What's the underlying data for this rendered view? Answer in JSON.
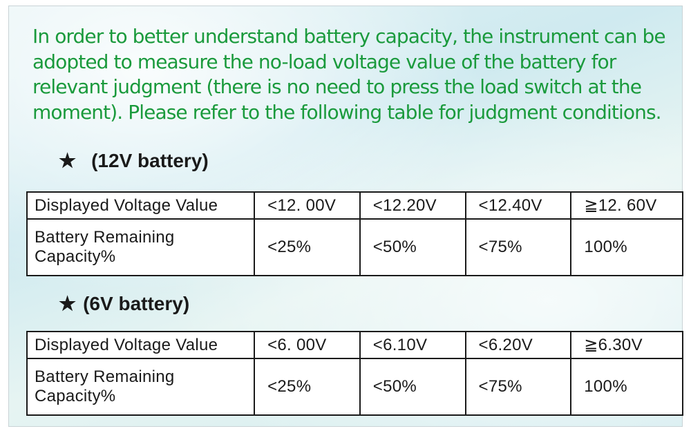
{
  "intro_text": "In order to better understand battery capacity, the instrument can be adopted to measure the no-load voltage value of the battery for relevant judgment (there is no need to press the load switch at the moment). Please refer to the following table for judgment conditions.",
  "sections": [
    {
      "heading_star": "★",
      "heading": "(12V battery)",
      "row_labels": [
        "Displayed Voltage Value",
        "Battery Remaining Capacity%"
      ],
      "voltages": [
        "<12. 00V",
        "<12.20V",
        "<12.40V",
        "≧12. 60V"
      ],
      "capacities": [
        "<25%",
        "<50%",
        "<75%",
        "100%"
      ]
    },
    {
      "heading_star": "★",
      "heading": "(6V battery)",
      "row_labels": [
        "Displayed Voltage Value",
        "Battery Remaining Capacity%"
      ],
      "voltages": [
        "<6. 00V",
        "<6.10V",
        "<6.20V",
        "≧6.30V"
      ],
      "capacities": [
        "<25%",
        "<50%",
        "<75%",
        "100%"
      ]
    }
  ],
  "colors": {
    "intro_text": "#1a9a3c",
    "table_border": "#1a1a1a",
    "background": "#d6eef1"
  }
}
